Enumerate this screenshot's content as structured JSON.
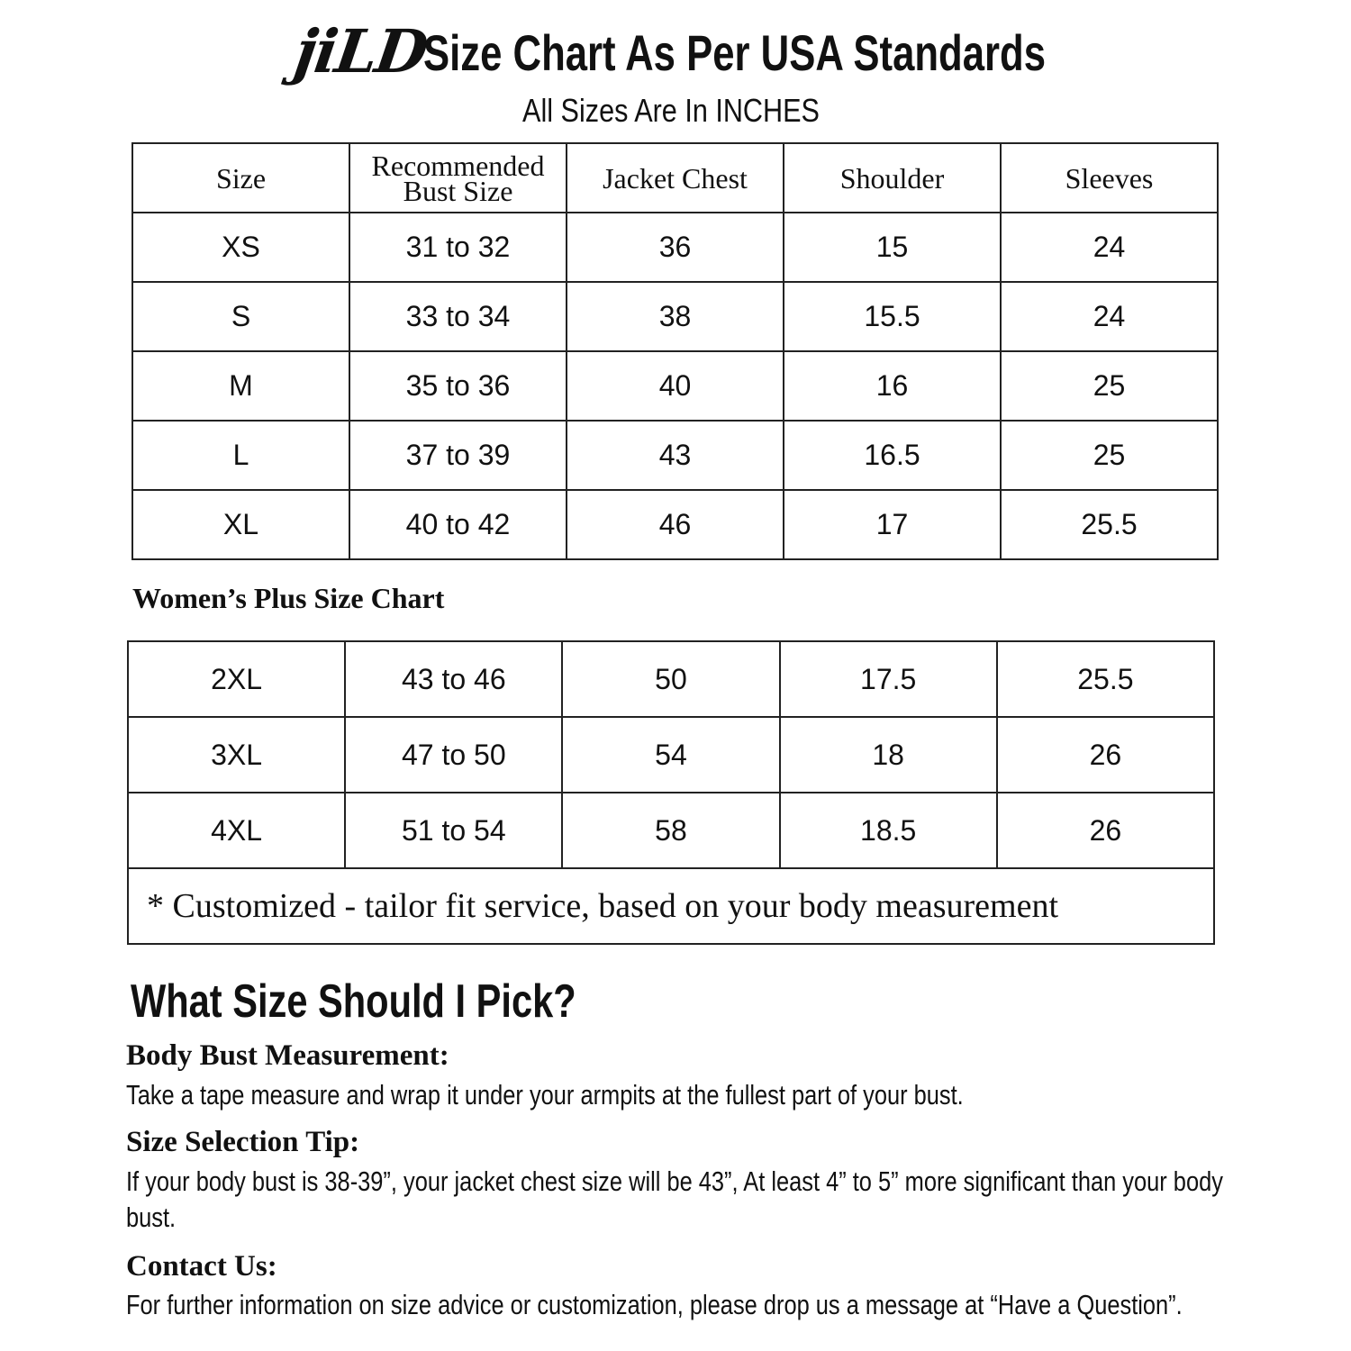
{
  "header": {
    "logo": "jiLD",
    "title": "Size Chart As Per USA Standards",
    "subtitle": "All Sizes Are In INCHES"
  },
  "table": {
    "headers": [
      "Size",
      "Recommended Bust Size",
      "Jacket Chest",
      "Shoulder",
      "Sleeves"
    ],
    "rows": [
      [
        "XS",
        "31 to 32",
        "36",
        "15",
        "24"
      ],
      [
        "S",
        "33 to 34",
        "38",
        "15.5",
        "24"
      ],
      [
        "M",
        "35 to 36",
        "40",
        "16",
        "25"
      ],
      [
        "L",
        "37 to 39",
        "43",
        "16.5",
        "25"
      ],
      [
        "XL",
        "40 to 42",
        "46",
        "17",
        "25.5"
      ]
    ]
  },
  "plus": {
    "title": "Women’s Plus Size Chart",
    "rows": [
      [
        "2XL",
        "43 to 46",
        "50",
        "17.5",
        "25.5"
      ],
      [
        "3XL",
        "47 to 50",
        "54",
        "18",
        "26"
      ],
      [
        "4XL",
        "51 to 54",
        "58",
        "18.5",
        "26"
      ]
    ],
    "note": "* Customized - tailor fit service,  based on your body measurement"
  },
  "guide": {
    "title": "What Size Should I Pick?",
    "sections": [
      {
        "heading": "Body Bust Measurement:",
        "text": "Take a tape measure and wrap it under your armpits at the fullest part of your bust."
      },
      {
        "heading": "Size Selection Tip:",
        "text": "If your body bust is 38-39”, your jacket chest size will be 43”, At least 4” to 5” more significant than your body bust."
      },
      {
        "heading": "Contact Us:",
        "text": "For further information on size advice or customization, please drop us a message at “Have a Question”."
      }
    ]
  }
}
